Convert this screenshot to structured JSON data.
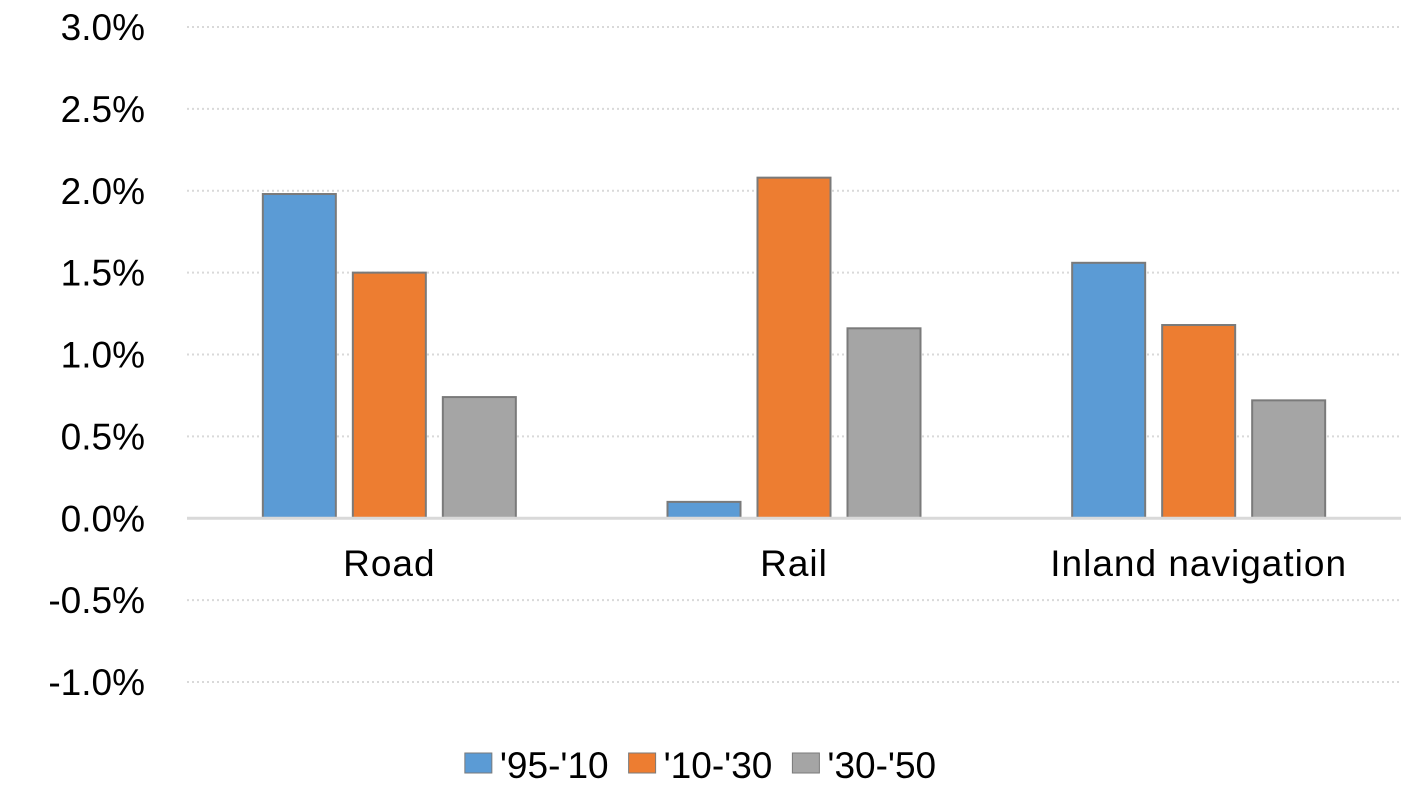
{
  "chart_data": {
    "type": "bar",
    "categories": [
      "Road",
      "Rail",
      "Inland navigation"
    ],
    "series": [
      {
        "name": "'95-'10",
        "color": "#5B9BD5",
        "values": [
          1.98,
          0.1,
          1.56
        ]
      },
      {
        "name": "'10-'30",
        "color": "#ED7D31",
        "values": [
          1.5,
          2.08,
          1.18
        ]
      },
      {
        "name": "'30-'50",
        "color": "#A5A5A5",
        "values": [
          0.74,
          1.16,
          0.72
        ]
      }
    ],
    "yticks": [
      "-1.0%",
      "-0.5%",
      "0.0%",
      "0.5%",
      "1.0%",
      "1.5%",
      "2.0%",
      "2.5%",
      "3.0%"
    ],
    "ytick_values": [
      -1.0,
      -0.5,
      0.0,
      0.5,
      1.0,
      1.5,
      2.0,
      2.5,
      3.0
    ],
    "ylim": [
      -1.0,
      3.0
    ],
    "y_unit": "%",
    "grid": "dotted horizontal",
    "legend_position": "bottom",
    "title": "",
    "xlabel": "",
    "ylabel": ""
  }
}
